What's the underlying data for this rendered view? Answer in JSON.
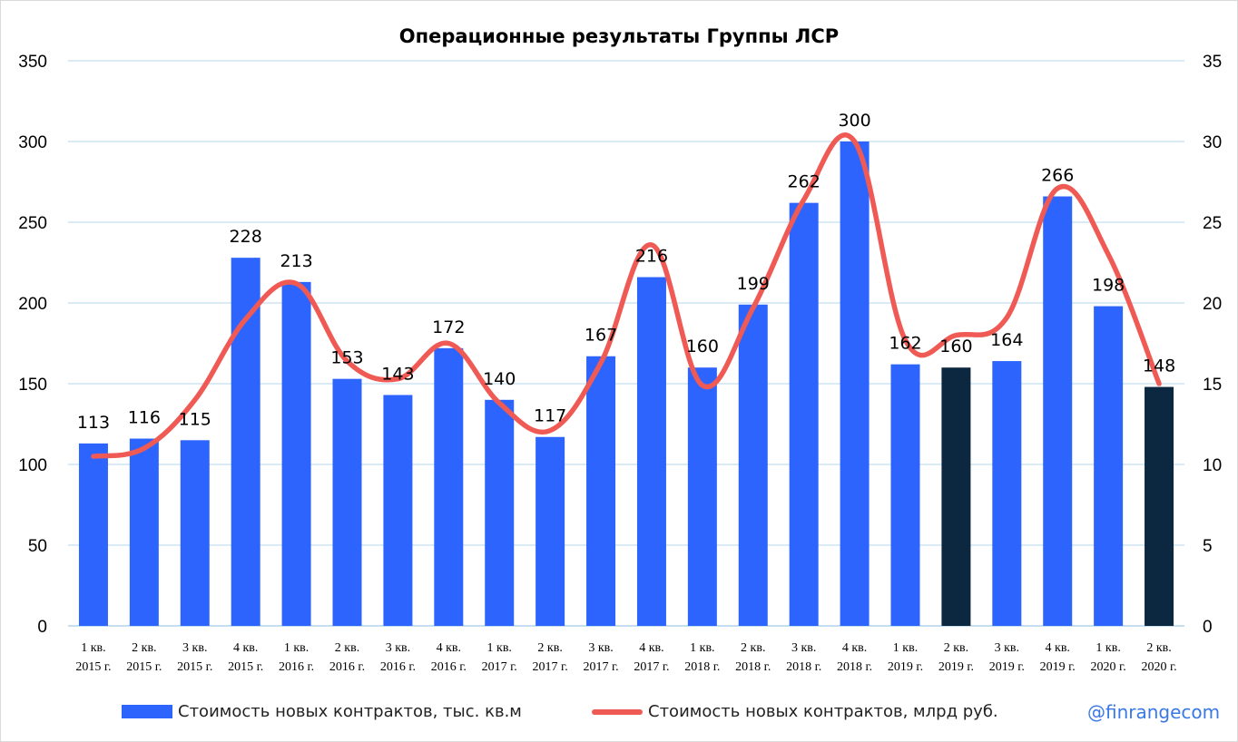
{
  "chart_data": {
    "type": "bar+line",
    "title": "Операционные результаты Группы ЛСР",
    "categories": [
      [
        "1 кв.",
        "2015 г."
      ],
      [
        "2 кв.",
        "2015 г."
      ],
      [
        "3 кв.",
        "2015 г."
      ],
      [
        "4 кв.",
        "2015 г."
      ],
      [
        "1 кв.",
        "2016 г."
      ],
      [
        "2 кв.",
        "2016 г."
      ],
      [
        "3 кв.",
        "2016 г."
      ],
      [
        "4 кв.",
        "2016 г."
      ],
      [
        "1 кв.",
        "2017 г."
      ],
      [
        "2 кв.",
        "2017 г."
      ],
      [
        "3 кв.",
        "2017 г."
      ],
      [
        "4 кв.",
        "2017 г."
      ],
      [
        "1 кв.",
        "2018 г."
      ],
      [
        "2 кв.",
        "2018 г."
      ],
      [
        "3 кв.",
        "2018 г."
      ],
      [
        "4 кв.",
        "2018 г."
      ],
      [
        "1 кв.",
        "2019 г."
      ],
      [
        "2 кв.",
        "2019 г."
      ],
      [
        "3 кв.",
        "2019 г."
      ],
      [
        "4 кв.",
        "2019 г."
      ],
      [
        "1 кв.",
        "2020 г."
      ],
      [
        "2 кв.",
        "2020 г."
      ]
    ],
    "series": [
      {
        "name": "Стоимость новых контрактов, тыс. кв.м",
        "type": "bar",
        "axis": "left",
        "color": "#2e64fe",
        "highlight_color": "#0c2740",
        "highlight_indices": [
          17,
          21
        ],
        "values": [
          113,
          116,
          115,
          228,
          213,
          153,
          143,
          172,
          140,
          117,
          167,
          216,
          160,
          199,
          262,
          300,
          162,
          160,
          164,
          266,
          198,
          148
        ]
      },
      {
        "name": "Стоимость новых контрактов, млрд руб.",
        "type": "line",
        "axis": "right",
        "color": "#f05a55",
        "values": [
          10.5,
          11.0,
          14.0,
          19.0,
          21.2,
          16.4,
          15.3,
          17.5,
          13.8,
          12.1,
          16.3,
          23.6,
          14.9,
          19.7,
          26.4,
          30.0,
          17.7,
          18.0,
          19.1,
          27.1,
          23.0,
          15.0
        ]
      }
    ],
    "ylim_left": [
      0,
      350
    ],
    "yticks_left": [
      0,
      50,
      100,
      150,
      200,
      250,
      300,
      350
    ],
    "ylim_right": [
      0,
      35
    ],
    "yticks_right": [
      0,
      5,
      10,
      15,
      20,
      25,
      30,
      35
    ],
    "grid": true,
    "legend": "bottom"
  },
  "watermark": "@finrangecom"
}
